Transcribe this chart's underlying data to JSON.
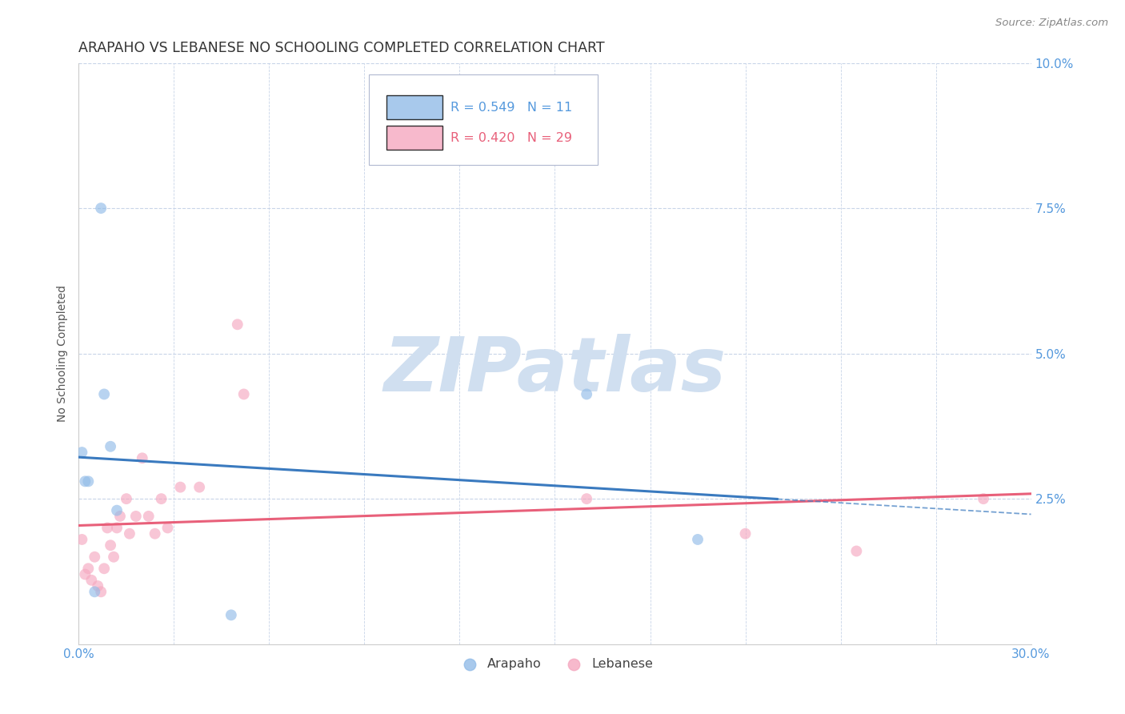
{
  "title": "ARAPAHO VS LEBANESE NO SCHOOLING COMPLETED CORRELATION CHART",
  "source": "Source: ZipAtlas.com",
  "ylabel": "No Schooling Completed",
  "xlim": [
    0.0,
    0.3
  ],
  "ylim": [
    0.0,
    0.1
  ],
  "arapaho_R": 0.549,
  "arapaho_N": 11,
  "lebanese_R": 0.42,
  "lebanese_N": 29,
  "arapaho_color": "#92bce8",
  "lebanese_color": "#f5a8c0",
  "arapaho_line_color": "#3a7abf",
  "lebanese_line_color": "#e8607a",
  "watermark_color": "#d0dff0",
  "background_color": "#ffffff",
  "grid_color": "#c8d4e8",
  "tick_color": "#5599dd",
  "title_color": "#333333",
  "title_fontsize": 12.5,
  "axis_label_fontsize": 10,
  "tick_fontsize": 11,
  "marker_size": 100,
  "marker_alpha": 0.65,
  "arapaho_x": [
    0.001,
    0.002,
    0.003,
    0.005,
    0.007,
    0.008,
    0.01,
    0.012,
    0.048,
    0.16,
    0.195
  ],
  "arapaho_y": [
    0.033,
    0.028,
    0.028,
    0.009,
    0.075,
    0.043,
    0.034,
    0.023,
    0.005,
    0.043,
    0.018
  ],
  "lebanese_x": [
    0.001,
    0.002,
    0.003,
    0.004,
    0.005,
    0.006,
    0.007,
    0.008,
    0.009,
    0.01,
    0.011,
    0.012,
    0.013,
    0.015,
    0.016,
    0.018,
    0.02,
    0.022,
    0.024,
    0.026,
    0.028,
    0.032,
    0.038,
    0.05,
    0.052,
    0.16,
    0.21,
    0.245,
    0.285
  ],
  "lebanese_y": [
    0.018,
    0.012,
    0.013,
    0.011,
    0.015,
    0.01,
    0.009,
    0.013,
    0.02,
    0.017,
    0.015,
    0.02,
    0.022,
    0.025,
    0.019,
    0.022,
    0.032,
    0.022,
    0.019,
    0.025,
    0.02,
    0.027,
    0.027,
    0.055,
    0.043,
    0.025,
    0.019,
    0.016,
    0.025
  ]
}
